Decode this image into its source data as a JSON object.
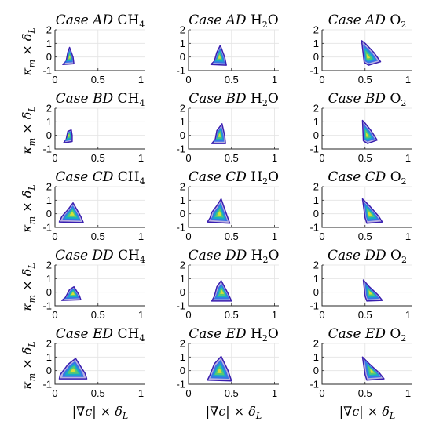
{
  "chart_data": {
    "type": "contour",
    "rows": 5,
    "cols": 3,
    "xlim": [
      0,
      1.05
    ],
    "ylim": [
      -1,
      2
    ],
    "xticks": [
      0,
      0.5,
      1
    ],
    "xtick_labels": [
      "0",
      "0.5",
      "1"
    ],
    "yticks": [
      -1,
      0,
      1,
      2
    ],
    "ytick_labels": [
      "-1",
      "0",
      "1",
      "2"
    ],
    "xlabel": "|∇c| × δ_L",
    "ylabel": "κ_m × δ_L",
    "grid": true,
    "colormap": "parula",
    "colors": {
      "outer": "#3a1fb0",
      "mid1": "#2a6fe6",
      "mid2": "#14b3c2",
      "mid3": "#5ccb6c",
      "inner": "#e6e231",
      "grid": "#e3e3e3",
      "axis": "#262626"
    },
    "panels": [
      {
        "case": "AD",
        "species": "CH",
        "sub": "4",
        "row": 0,
        "col": 0,
        "outline": [
          [
            0.13,
            -0.3
          ],
          [
            0.09,
            -0.55
          ],
          [
            0.22,
            -0.5
          ],
          [
            0.21,
            0.0
          ],
          [
            0.17,
            0.7
          ],
          [
            0.15,
            0.35
          ]
        ],
        "core": [
          0.17,
          0.0
        ]
      },
      {
        "case": "AD",
        "species": "H",
        "sub": "2",
        "tail": "O",
        "row": 0,
        "col": 1,
        "outline": [
          [
            0.3,
            -0.3
          ],
          [
            0.26,
            -0.55
          ],
          [
            0.44,
            -0.6
          ],
          [
            0.42,
            0.0
          ],
          [
            0.37,
            0.85
          ],
          [
            0.33,
            0.35
          ]
        ],
        "core": [
          0.36,
          0.0
        ]
      },
      {
        "case": "AD",
        "species": "O",
        "sub": "2",
        "row": 0,
        "col": 2,
        "outline": [
          [
            0.46,
            1.2
          ],
          [
            0.49,
            -0.4
          ],
          [
            0.54,
            -0.6
          ],
          [
            0.68,
            -0.35
          ],
          [
            0.6,
            0.35
          ],
          [
            0.5,
            1.0
          ]
        ],
        "core": [
          0.53,
          0.0
        ]
      },
      {
        "case": "BD",
        "species": "CH",
        "sub": "4",
        "row": 1,
        "col": 0,
        "outline": [
          [
            0.13,
            -0.3
          ],
          [
            0.1,
            -0.55
          ],
          [
            0.2,
            -0.45
          ],
          [
            0.2,
            0.0
          ],
          [
            0.19,
            0.4
          ],
          [
            0.15,
            0.3
          ]
        ],
        "core": [
          0.16,
          0.0
        ]
      },
      {
        "case": "BD",
        "species": "H",
        "sub": "2",
        "tail": "O",
        "row": 1,
        "col": 1,
        "outline": [
          [
            0.31,
            -0.3
          ],
          [
            0.27,
            -0.6
          ],
          [
            0.43,
            -0.6
          ],
          [
            0.42,
            0.0
          ],
          [
            0.39,
            0.85
          ],
          [
            0.33,
            0.35
          ]
        ],
        "core": [
          0.36,
          0.0
        ]
      },
      {
        "case": "BD",
        "species": "O",
        "sub": "2",
        "row": 1,
        "col": 2,
        "outline": [
          [
            0.47,
            1.1
          ],
          [
            0.48,
            -0.4
          ],
          [
            0.53,
            -0.6
          ],
          [
            0.64,
            -0.35
          ],
          [
            0.57,
            0.35
          ],
          [
            0.5,
            0.9
          ]
        ],
        "core": [
          0.52,
          0.0
        ]
      },
      {
        "case": "CD",
        "species": "CH",
        "sub": "4",
        "row": 2,
        "col": 0,
        "outline": [
          [
            0.08,
            -0.2
          ],
          [
            0.05,
            -0.6
          ],
          [
            0.33,
            -0.65
          ],
          [
            0.3,
            -0.2
          ],
          [
            0.21,
            0.8
          ],
          [
            0.15,
            0.3
          ]
        ],
        "core": [
          0.2,
          0.0
        ]
      },
      {
        "case": "CD",
        "species": "H",
        "sub": "2",
        "tail": "O",
        "row": 2,
        "col": 1,
        "outline": [
          [
            0.25,
            -0.3
          ],
          [
            0.22,
            -0.6
          ],
          [
            0.48,
            -0.7
          ],
          [
            0.44,
            0.0
          ],
          [
            0.38,
            1.1
          ],
          [
            0.33,
            0.6
          ],
          [
            0.27,
            0.1
          ]
        ],
        "core": [
          0.36,
          0.0
        ]
      },
      {
        "case": "CD",
        "species": "O",
        "sub": "2",
        "row": 2,
        "col": 2,
        "outline": [
          [
            0.47,
            1.1
          ],
          [
            0.5,
            -0.3
          ],
          [
            0.52,
            -0.7
          ],
          [
            0.7,
            -0.6
          ],
          [
            0.66,
            -0.2
          ],
          [
            0.55,
            0.6
          ]
        ],
        "core": [
          0.55,
          0.0
        ]
      },
      {
        "case": "DD",
        "species": "CH",
        "sub": "4",
        "row": 3,
        "col": 0,
        "outline": [
          [
            0.12,
            -0.4
          ],
          [
            0.08,
            -0.6
          ],
          [
            0.3,
            -0.55
          ],
          [
            0.28,
            -0.2
          ],
          [
            0.22,
            0.4
          ],
          [
            0.17,
            0.2
          ]
        ],
        "core": [
          0.21,
          -0.1
        ]
      },
      {
        "case": "DD",
        "species": "H",
        "sub": "2",
        "tail": "O",
        "row": 3,
        "col": 1,
        "outline": [
          [
            0.3,
            -0.3
          ],
          [
            0.27,
            -0.65
          ],
          [
            0.5,
            -0.65
          ],
          [
            0.46,
            -0.1
          ],
          [
            0.38,
            0.85
          ],
          [
            0.33,
            0.4
          ]
        ],
        "core": [
          0.39,
          0.0
        ]
      },
      {
        "case": "DD",
        "species": "O",
        "sub": "2",
        "row": 3,
        "col": 2,
        "outline": [
          [
            0.48,
            0.9
          ],
          [
            0.5,
            -0.3
          ],
          [
            0.52,
            -0.65
          ],
          [
            0.7,
            -0.6
          ],
          [
            0.65,
            -0.2
          ],
          [
            0.55,
            0.4
          ]
        ],
        "core": [
          0.56,
          -0.05
        ]
      },
      {
        "case": "ED",
        "species": "CH",
        "sub": "4",
        "row": 4,
        "col": 0,
        "outline": [
          [
            0.06,
            -0.3
          ],
          [
            0.05,
            -0.6
          ],
          [
            0.37,
            -0.6
          ],
          [
            0.35,
            -0.2
          ],
          [
            0.24,
            0.9
          ],
          [
            0.15,
            0.45
          ]
        ],
        "core": [
          0.21,
          0.0
        ]
      },
      {
        "case": "ED",
        "species": "H",
        "sub": "2",
        "tail": "O",
        "row": 4,
        "col": 1,
        "outline": [
          [
            0.25,
            -0.3
          ],
          [
            0.22,
            -0.7
          ],
          [
            0.5,
            -0.75
          ],
          [
            0.46,
            0.0
          ],
          [
            0.38,
            1.05
          ],
          [
            0.3,
            0.5
          ]
        ],
        "core": [
          0.36,
          -0.05
        ]
      },
      {
        "case": "ED",
        "species": "O",
        "sub": "2",
        "row": 4,
        "col": 2,
        "outline": [
          [
            0.47,
            1.0
          ],
          [
            0.5,
            -0.3
          ],
          [
            0.52,
            -0.7
          ],
          [
            0.72,
            -0.6
          ],
          [
            0.67,
            -0.2
          ],
          [
            0.55,
            0.5
          ]
        ],
        "core": [
          0.58,
          -0.05
        ]
      }
    ]
  }
}
